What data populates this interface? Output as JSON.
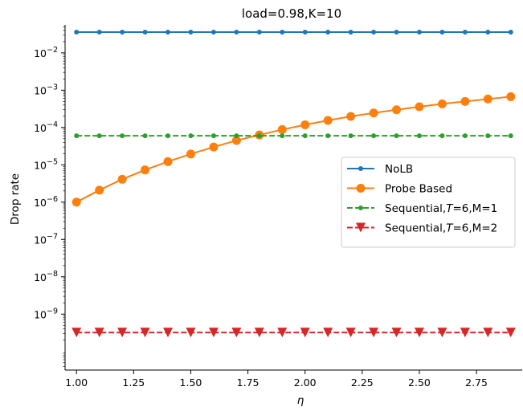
{
  "chart_data": {
    "type": "line",
    "title": "load=0.98,K=10",
    "xlabel": "η",
    "ylabel": "Drop rate",
    "yscale": "log",
    "xlim": [
      0.95,
      2.95
    ],
    "ylim_log10": [
      -10.5,
      -1.25
    ],
    "x_ticks": [
      1.0,
      1.25,
      1.5,
      1.75,
      2.0,
      2.25,
      2.5,
      2.75
    ],
    "x_tick_labels": [
      "1.00",
      "1.25",
      "1.50",
      "1.75",
      "2.00",
      "2.25",
      "2.50",
      "2.75"
    ],
    "y_tick_exponents": [
      -9,
      -8,
      -7,
      -6,
      -5,
      -4,
      -3,
      -2
    ],
    "y_tick_base": "10",
    "grid": false,
    "legend_position": "center-right",
    "x": [
      1.0,
      1.1,
      1.2,
      1.3,
      1.4,
      1.5,
      1.6,
      1.7,
      1.8,
      1.9,
      2.0,
      2.1,
      2.2,
      2.3,
      2.4,
      2.5,
      2.6,
      2.7,
      2.8,
      2.9
    ],
    "series": [
      {
        "name": "NoLB",
        "color": "#1f77b4",
        "style": "solid",
        "marker": "small-circle",
        "values": [
          0.036,
          0.036,
          0.036,
          0.036,
          0.036,
          0.036,
          0.036,
          0.036,
          0.036,
          0.036,
          0.036,
          0.036,
          0.036,
          0.036,
          0.036,
          0.036,
          0.036,
          0.036,
          0.036,
          0.036
        ]
      },
      {
        "name": "Probe Based",
        "color": "#ff7f0e",
        "style": "solid",
        "marker": "circle",
        "values": [
          1e-06,
          2.1e-06,
          4.1e-06,
          7.3e-06,
          1.22e-05,
          1.95e-05,
          3e-05,
          4.5e-05,
          6.3e-05,
          8.8e-05,
          0.000118,
          0.000155,
          0.000198,
          0.000245,
          0.000298,
          0.00036,
          0.00043,
          0.0005,
          0.00058,
          0.00067
        ]
      },
      {
        "name": "Sequential,$T$=6,M=1",
        "legend_prefix": "Sequential,",
        "legend_italic": "T",
        "legend_suffix": "=6,M=1",
        "color": "#2ca02c",
        "style": "dashed",
        "marker": "small-circle",
        "values": [
          6e-05,
          6e-05,
          6e-05,
          6e-05,
          6e-05,
          6e-05,
          6e-05,
          6e-05,
          6e-05,
          6e-05,
          6e-05,
          6e-05,
          6e-05,
          6e-05,
          6e-05,
          6e-05,
          6e-05,
          6e-05,
          6e-05,
          6e-05
        ]
      },
      {
        "name": "Sequential,$T$=6,M=2",
        "legend_prefix": "Sequential,",
        "legend_italic": "T",
        "legend_suffix": "=6,M=2",
        "color": "#d62728",
        "style": "dashed",
        "marker": "triangle-down",
        "values": [
          3.2e-10,
          3.2e-10,
          3.2e-10,
          3.2e-10,
          3.2e-10,
          3.2e-10,
          3.2e-10,
          3.2e-10,
          3.2e-10,
          3.2e-10,
          3.2e-10,
          3.2e-10,
          3.2e-10,
          3.2e-10,
          3.2e-10,
          3.2e-10,
          3.2e-10,
          3.2e-10,
          3.2e-10,
          3.2e-10
        ]
      }
    ]
  }
}
